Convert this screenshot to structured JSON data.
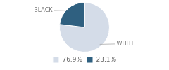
{
  "chart_data": {
    "type": "pie",
    "categories": [
      "WHITE",
      "BLACK"
    ],
    "values": [
      76.9,
      23.1
    ],
    "value_labels": [
      "76.9%",
      "23.1%"
    ],
    "colors": [
      "#d4dce8",
      "#2f6080"
    ],
    "legend": "bottom"
  }
}
